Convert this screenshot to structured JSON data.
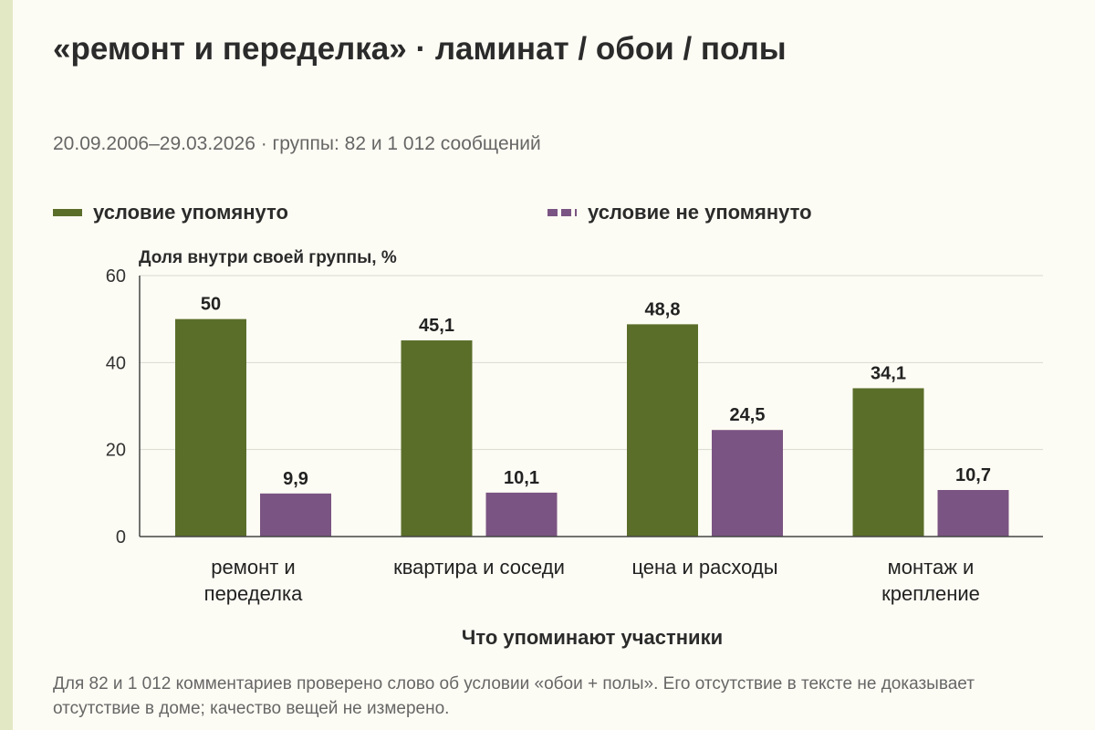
{
  "title": "«ремонт и переделка» · ламинат / обои / полы",
  "subtitle": "20.09.2006–29.03.2026 · группы: 82 и 1 012 сообщений",
  "legend": [
    {
      "label": "условие упомянуто",
      "color": "#5a6e2a",
      "style": "solid"
    },
    {
      "label": "условие не упомянуто",
      "color": "#7a5482",
      "style": "dashed"
    }
  ],
  "footnote": "Для 82 и 1 012 комментариев проверено слово об условии «обои + полы». Его отсутствие в тексте не доказывает отсутствие в доме; качество вещей не измерено.",
  "chart_data": {
    "type": "bar",
    "title": "«ремонт и переделка» · ламинат / обои / полы",
    "xlabel": "Что упоминают участники",
    "ylabel": "Доля внутри своей группы, %",
    "ylim": [
      0,
      60
    ],
    "yticks": [
      "0",
      "20",
      "40",
      "60"
    ],
    "grid": true,
    "legend_position": "top",
    "categories": [
      [
        "ремонт и",
        "переделка"
      ],
      [
        "квартира и соседи"
      ],
      [
        "цена и расходы"
      ],
      [
        "монтаж и",
        "крепление"
      ]
    ],
    "series": [
      {
        "name": "условие упомянуто",
        "color": "#5a6e2a",
        "values": [
          50,
          45.1,
          48.8,
          34.1
        ],
        "labels": [
          "50",
          "45,1",
          "48,8",
          "34,1"
        ]
      },
      {
        "name": "условие не упомянуто",
        "color": "#7a5482",
        "values": [
          9.9,
          10.1,
          24.5,
          10.7
        ],
        "labels": [
          "9,9",
          "10,1",
          "24,5",
          "10,7"
        ]
      }
    ]
  }
}
